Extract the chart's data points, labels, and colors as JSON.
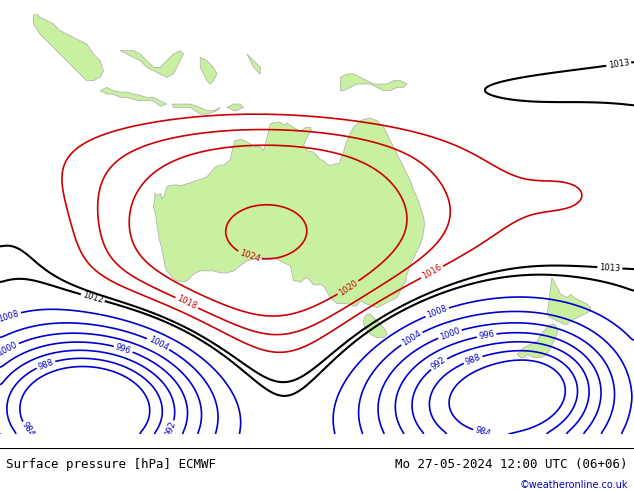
{
  "title_left": "Surface pressure [hPa] ECMWF",
  "title_right": "Mo 27-05-2024 12:00 UTC (06+06)",
  "copyright": "©weatheronline.co.uk",
  "ocean_color": "#d0dce8",
  "land_color": "#c8f0a0",
  "land_edge_color": "#aaaaaa",
  "isobar_low_color": "#0000cc",
  "isobar_high_color": "#cc0000",
  "isobar_mid_color": "#000000",
  "isobar_mid_values": [
    1012,
    1013
  ],
  "isobar_low_values": [
    984,
    988,
    992,
    996,
    1000,
    1004,
    1008
  ],
  "isobar_high_values": [
    1016,
    1018,
    1020,
    1024
  ],
  "font_size_title": 9,
  "lon_min": 90,
  "lon_max": 185,
  "lat_min": -58,
  "lat_max": 5
}
